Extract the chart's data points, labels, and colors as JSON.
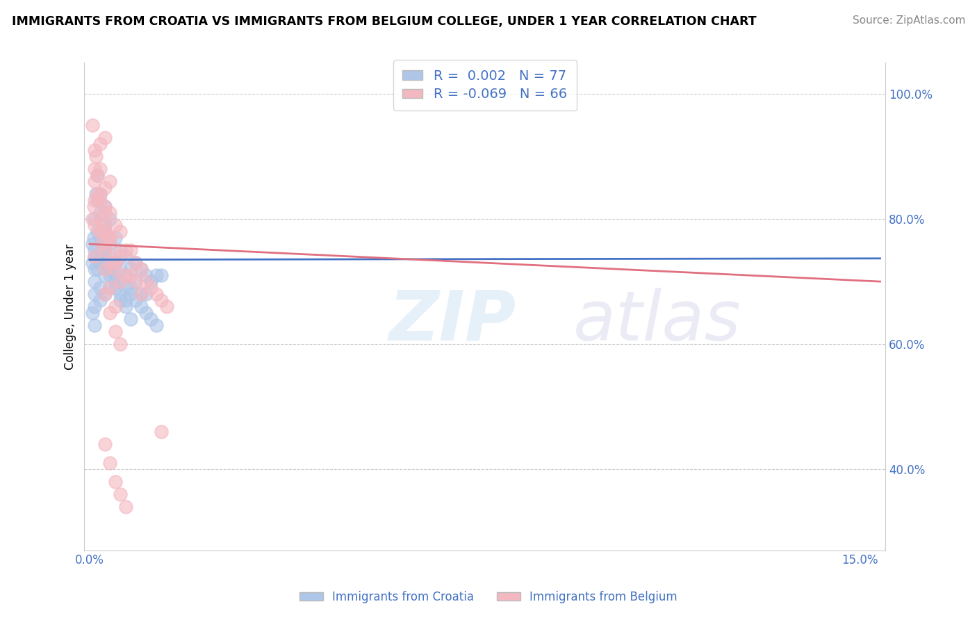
{
  "title": "IMMIGRANTS FROM CROATIA VS IMMIGRANTS FROM BELGIUM COLLEGE, UNDER 1 YEAR CORRELATION CHART",
  "source": "Source: ZipAtlas.com",
  "ylabel": "College, Under 1 year",
  "xlim": [
    -0.001,
    0.155
  ],
  "ylim": [
    0.27,
    1.05
  ],
  "xtick_positions": [
    0.0,
    0.15
  ],
  "xticklabels": [
    "0.0%",
    "15.0%"
  ],
  "ytick_positions": [
    0.4,
    0.6,
    0.8,
    1.0
  ],
  "yticklabels": [
    "40.0%",
    "60.0%",
    "80.0%",
    "100.0%"
  ],
  "croatia_color": "#aec6e8",
  "belgium_color": "#f4b8c1",
  "croatia_R": 0.002,
  "croatia_N": 77,
  "belgium_R": -0.069,
  "belgium_N": 66,
  "croatia_line_color": "#4472c4",
  "belgium_line_color": "#e07080",
  "watermark_zip": "ZIP",
  "watermark_atlas": "atlas",
  "legend_label_croatia": "Immigrants from Croatia",
  "legend_label_belgium": "Immigrants from Belgium",
  "tick_color": "#4472c4",
  "grid_color": "#cccccc",
  "croatia_x": [
    0.0005,
    0.0008,
    0.001,
    0.001,
    0.001,
    0.001,
    0.0012,
    0.0015,
    0.0015,
    0.002,
    0.002,
    0.002,
    0.002,
    0.002,
    0.0025,
    0.003,
    0.003,
    0.003,
    0.003,
    0.003,
    0.0035,
    0.004,
    0.004,
    0.004,
    0.004,
    0.005,
    0.005,
    0.005,
    0.006,
    0.006,
    0.006,
    0.007,
    0.007,
    0.007,
    0.008,
    0.008,
    0.009,
    0.009,
    0.01,
    0.01,
    0.011,
    0.011,
    0.012,
    0.013,
    0.014,
    0.0005,
    0.001,
    0.001,
    0.0015,
    0.002,
    0.002,
    0.0025,
    0.003,
    0.003,
    0.0035,
    0.004,
    0.005,
    0.006,
    0.007,
    0.008,
    0.0005,
    0.001,
    0.001,
    0.0015,
    0.002,
    0.003,
    0.003,
    0.004,
    0.005,
    0.006,
    0.007,
    0.008,
    0.009,
    0.01,
    0.011,
    0.012,
    0.013
  ],
  "croatia_y": [
    0.73,
    0.77,
    0.8,
    0.75,
    0.7,
    0.68,
    0.84,
    0.87,
    0.83,
    0.84,
    0.81,
    0.78,
    0.73,
    0.69,
    0.78,
    0.82,
    0.78,
    0.75,
    0.71,
    0.68,
    0.74,
    0.8,
    0.76,
    0.73,
    0.69,
    0.77,
    0.73,
    0.7,
    0.75,
    0.72,
    0.68,
    0.74,
    0.71,
    0.67,
    0.72,
    0.69,
    0.73,
    0.7,
    0.72,
    0.68,
    0.71,
    0.68,
    0.7,
    0.71,
    0.71,
    0.65,
    0.66,
    0.63,
    0.72,
    0.74,
    0.67,
    0.76,
    0.79,
    0.75,
    0.72,
    0.71,
    0.69,
    0.67,
    0.66,
    0.64,
    0.76,
    0.74,
    0.72,
    0.78,
    0.77,
    0.76,
    0.73,
    0.72,
    0.71,
    0.7,
    0.69,
    0.68,
    0.67,
    0.66,
    0.65,
    0.64,
    0.63
  ],
  "belgium_x": [
    0.0005,
    0.0008,
    0.001,
    0.001,
    0.001,
    0.001,
    0.0012,
    0.0015,
    0.002,
    0.002,
    0.002,
    0.002,
    0.0025,
    0.003,
    0.003,
    0.003,
    0.003,
    0.0035,
    0.004,
    0.004,
    0.004,
    0.005,
    0.005,
    0.005,
    0.006,
    0.006,
    0.007,
    0.007,
    0.008,
    0.008,
    0.009,
    0.009,
    0.01,
    0.01,
    0.011,
    0.012,
    0.013,
    0.014,
    0.015,
    0.0005,
    0.001,
    0.001,
    0.0015,
    0.002,
    0.002,
    0.003,
    0.003,
    0.004,
    0.005,
    0.006,
    0.003,
    0.004,
    0.005,
    0.006,
    0.003,
    0.004,
    0.005,
    0.006,
    0.007,
    0.014,
    0.003,
    0.004,
    0.002,
    0.003,
    0.004,
    0.005
  ],
  "belgium_y": [
    0.8,
    0.82,
    0.86,
    0.83,
    0.79,
    0.74,
    0.9,
    0.87,
    0.92,
    0.88,
    0.84,
    0.8,
    0.76,
    0.82,
    0.79,
    0.75,
    0.78,
    0.77,
    0.81,
    0.77,
    0.73,
    0.79,
    0.75,
    0.72,
    0.78,
    0.74,
    0.75,
    0.71,
    0.75,
    0.71,
    0.73,
    0.7,
    0.72,
    0.68,
    0.7,
    0.69,
    0.68,
    0.67,
    0.66,
    0.95,
    0.91,
    0.88,
    0.84,
    0.83,
    0.78,
    0.85,
    0.81,
    0.77,
    0.73,
    0.7,
    0.68,
    0.65,
    0.62,
    0.6,
    0.44,
    0.41,
    0.38,
    0.36,
    0.34,
    0.46,
    0.93,
    0.86,
    0.78,
    0.72,
    0.69,
    0.66
  ]
}
